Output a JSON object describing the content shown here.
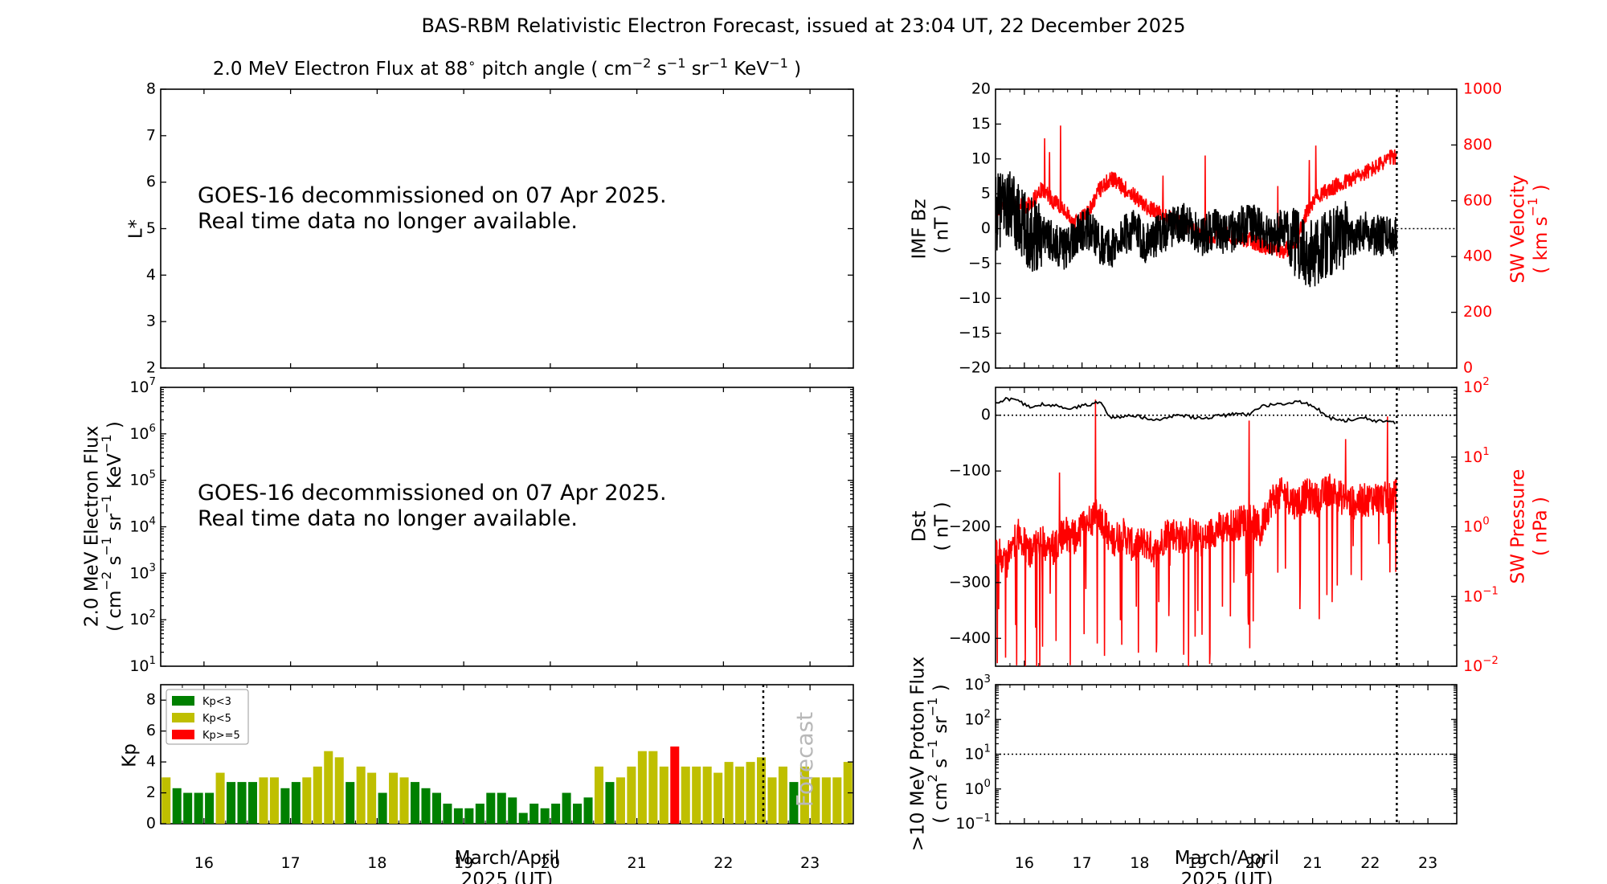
{
  "title": "BAS-RBM Relativistic Electron Forecast, issued at 23:04 UT, 22 December 2025",
  "chart_data": [
    {
      "id": "lstar",
      "type": "heatmap",
      "title": "2.0 MeV Electron Flux at 88",
      "title_suffix": " pitch angle (",
      "ylabel": "L*",
      "ylim": [
        2,
        8
      ],
      "yticks": [
        "2",
        "3",
        "4",
        "5",
        "6",
        "7",
        "8"
      ],
      "message": [
        "GOES-16 decommissioned on 07 Apr 2025.",
        "Real time data no longer available."
      ]
    },
    {
      "id": "flux",
      "type": "line",
      "ylabel": [
        "2.0 MeV Electron Flux",
        "( cm",
        "s",
        "sr",
        "KeV",
        " )"
      ],
      "ylim": [
        10,
        10000000
      ],
      "yscale": "log",
      "ytick_exponents": [
        "1",
        "2",
        "3",
        "4",
        "5",
        "6",
        "7"
      ],
      "message": [
        "GOES-16 decommissioned on 07 Apr 2025.",
        "Real time data no longer available."
      ]
    },
    {
      "id": "kp",
      "type": "bar",
      "ylabel": "Kp",
      "ylim": [
        0,
        9
      ],
      "yticks": [
        "0",
        "2",
        "4",
        "6",
        "8"
      ],
      "xlabel": [
        "March/April",
        "2025 (UT)"
      ],
      "xticks": [
        "16",
        "17",
        "18",
        "19",
        "20",
        "21",
        "22",
        "23"
      ],
      "xlim": [
        15.5,
        23.5
      ],
      "issue_time": 22.46,
      "forecast_label": "Forecast",
      "legend": [
        "Kp<3",
        "Kp<5",
        "Kp>=5"
      ],
      "legend_position": "top-left",
      "colors": {
        "low": "#008000",
        "mid": "#bfbf00",
        "high": "#ff0000"
      },
      "values": [
        3.0,
        2.3,
        2.0,
        2.0,
        2.0,
        3.3,
        2.7,
        2.7,
        2.7,
        3.0,
        3.0,
        2.3,
        2.7,
        3.0,
        3.7,
        4.7,
        4.3,
        2.7,
        3.7,
        3.3,
        2.0,
        3.3,
        3.0,
        2.7,
        2.3,
        2.0,
        1.3,
        1.0,
        1.0,
        1.3,
        2.0,
        2.0,
        1.7,
        0.7,
        1.3,
        1.0,
        1.3,
        2.0,
        1.3,
        1.7,
        3.7,
        2.7,
        3.0,
        3.7,
        4.7,
        4.7,
        3.7,
        5.0,
        3.7,
        3.7,
        3.7,
        3.3,
        4.0,
        3.7,
        4.0,
        4.3,
        3.0,
        3.7,
        2.7,
        3.7,
        3.0,
        3.0,
        3.0,
        4.0
      ]
    },
    {
      "id": "imf",
      "type": "line",
      "ylabel": [
        "IMF Bz",
        "( nT )"
      ],
      "ylim": [
        -20,
        20
      ],
      "yticks": [
        "−20",
        "−15",
        "−10",
        "−5",
        "0",
        "5",
        "10",
        "15",
        "20"
      ],
      "y2label": [
        "SW Velocity",
        "( km s",
        " )"
      ],
      "y2lim": [
        0,
        1000
      ],
      "y2ticks": [
        "0",
        "200",
        "400",
        "600",
        "800",
        "1000"
      ],
      "xlim": [
        15.5,
        23.5
      ],
      "series": [
        {
          "key": "bz",
          "color": "#000000",
          "x": [
            15.5,
            15.7,
            15.9,
            16.1,
            16.3,
            16.5,
            16.7,
            16.9,
            17.1,
            17.3,
            17.5,
            17.7,
            17.9,
            18.1,
            18.3,
            18.5,
            18.7,
            18.9,
            19.1,
            19.3,
            19.5,
            19.7,
            19.9,
            20.1,
            20.3,
            20.5,
            20.7,
            20.9,
            21.1,
            21.3,
            21.5,
            21.7,
            21.9,
            22.1,
            22.3,
            22.46
          ],
          "y": [
            2,
            4,
            1,
            -1,
            0,
            -2,
            -3,
            -1,
            0,
            -2,
            -3,
            -1,
            0,
            -2,
            -1,
            0,
            1,
            0,
            -1,
            0,
            -1,
            0,
            1,
            0,
            -1,
            0,
            -2,
            -4,
            -3,
            -2,
            -1,
            -1,
            0,
            -1,
            -1,
            -1
          ]
        },
        {
          "key": "v",
          "color": "#ff0000",
          "x": [
            15.5,
            15.7,
            15.9,
            16.1,
            16.3,
            16.5,
            16.7,
            16.9,
            17.1,
            17.3,
            17.5,
            17.7,
            17.9,
            18.1,
            18.3,
            18.5,
            18.7,
            18.9,
            19.1,
            19.3,
            19.5,
            19.7,
            19.9,
            20.1,
            20.3,
            20.5,
            20.7,
            20.9,
            21.1,
            21.3,
            21.5,
            21.7,
            21.9,
            22.1,
            22.3,
            22.46
          ],
          "y": [
            560,
            600,
            570,
            590,
            640,
            600,
            560,
            520,
            560,
            640,
            680,
            650,
            620,
            580,
            560,
            540,
            520,
            500,
            480,
            470,
            480,
            470,
            460,
            440,
            430,
            420,
            440,
            560,
            620,
            640,
            660,
            680,
            700,
            720,
            750,
            760
          ]
        }
      ]
    },
    {
      "id": "dst",
      "type": "line",
      "ylabel": [
        "Dst",
        "( nT )"
      ],
      "ylim": [
        -450,
        50
      ],
      "yticks": [
        "−400",
        "−300",
        "−200",
        "−100",
        "0"
      ],
      "y2label": [
        "SW Pressure",
        "( nPa )"
      ],
      "y2lim": [
        0.01,
        100
      ],
      "y2scale": "log",
      "y2tick_exponents": [
        "−2",
        "−1",
        "0",
        "1",
        "2"
      ],
      "xlim": [
        15.5,
        23.5
      ],
      "series": [
        {
          "key": "dst",
          "color": "#000000",
          "x": [
            15.5,
            15.7,
            15.9,
            16.1,
            16.3,
            16.5,
            16.7,
            16.9,
            17.1,
            17.3,
            17.4,
            17.5,
            17.7,
            17.9,
            18.1,
            18.3,
            18.5,
            18.7,
            18.9,
            19.1,
            19.3,
            19.5,
            19.7,
            19.9,
            20.1,
            20.3,
            20.5,
            20.7,
            20.9,
            21.1,
            21.3,
            21.5,
            21.7,
            21.9,
            22.1,
            22.3,
            22.46
          ],
          "y": [
            20,
            30,
            25,
            15,
            20,
            18,
            12,
            15,
            18,
            25,
            10,
            -5,
            -2,
            0,
            -5,
            -8,
            -2,
            0,
            -3,
            -5,
            -2,
            0,
            5,
            0,
            15,
            20,
            18,
            25,
            20,
            10,
            -5,
            -10,
            -8,
            -5,
            -10,
            -12,
            -15
          ]
        },
        {
          "key": "p",
          "color": "#ff0000",
          "x": [
            15.5,
            15.7,
            15.9,
            16.1,
            16.3,
            16.5,
            16.7,
            16.9,
            17.1,
            17.3,
            17.5,
            17.7,
            17.9,
            18.1,
            18.3,
            18.5,
            18.7,
            18.9,
            19.1,
            19.3,
            19.5,
            19.7,
            19.9,
            20.1,
            20.3,
            20.5,
            20.7,
            20.9,
            21.1,
            21.3,
            21.5,
            21.7,
            21.9,
            22.1,
            22.3,
            22.46
          ],
          "y": [
            0.5,
            0.3,
            0.8,
            0.4,
            0.6,
            0.5,
            0.8,
            0.7,
            1.2,
            1.5,
            0.6,
            0.8,
            0.5,
            0.6,
            0.4,
            0.9,
            0.7,
            0.8,
            0.6,
            0.9,
            1.0,
            1.1,
            1.4,
            0.8,
            2.5,
            3.0,
            2.2,
            2.8,
            2.4,
            3.5,
            2.6,
            2.2,
            2.4,
            2.6,
            2.5,
            2.8
          ]
        }
      ]
    },
    {
      "id": "proton",
      "type": "line",
      "ylabel": [
        ">10 MeV Proton Flux",
        "( cm",
        "s",
        "sr",
        " )"
      ],
      "ylim": [
        0.1,
        1000
      ],
      "yscale": "log",
      "ytick_exponents": [
        "−1",
        "0",
        "1",
        "2",
        "3"
      ],
      "xlabel": [
        "March/April",
        "2025 (UT)"
      ],
      "xticks": [
        "16",
        "17",
        "18",
        "19",
        "20",
        "21",
        "22",
        "23"
      ],
      "xlim": [
        15.5,
        23.5
      ],
      "threshold": 10
    }
  ]
}
